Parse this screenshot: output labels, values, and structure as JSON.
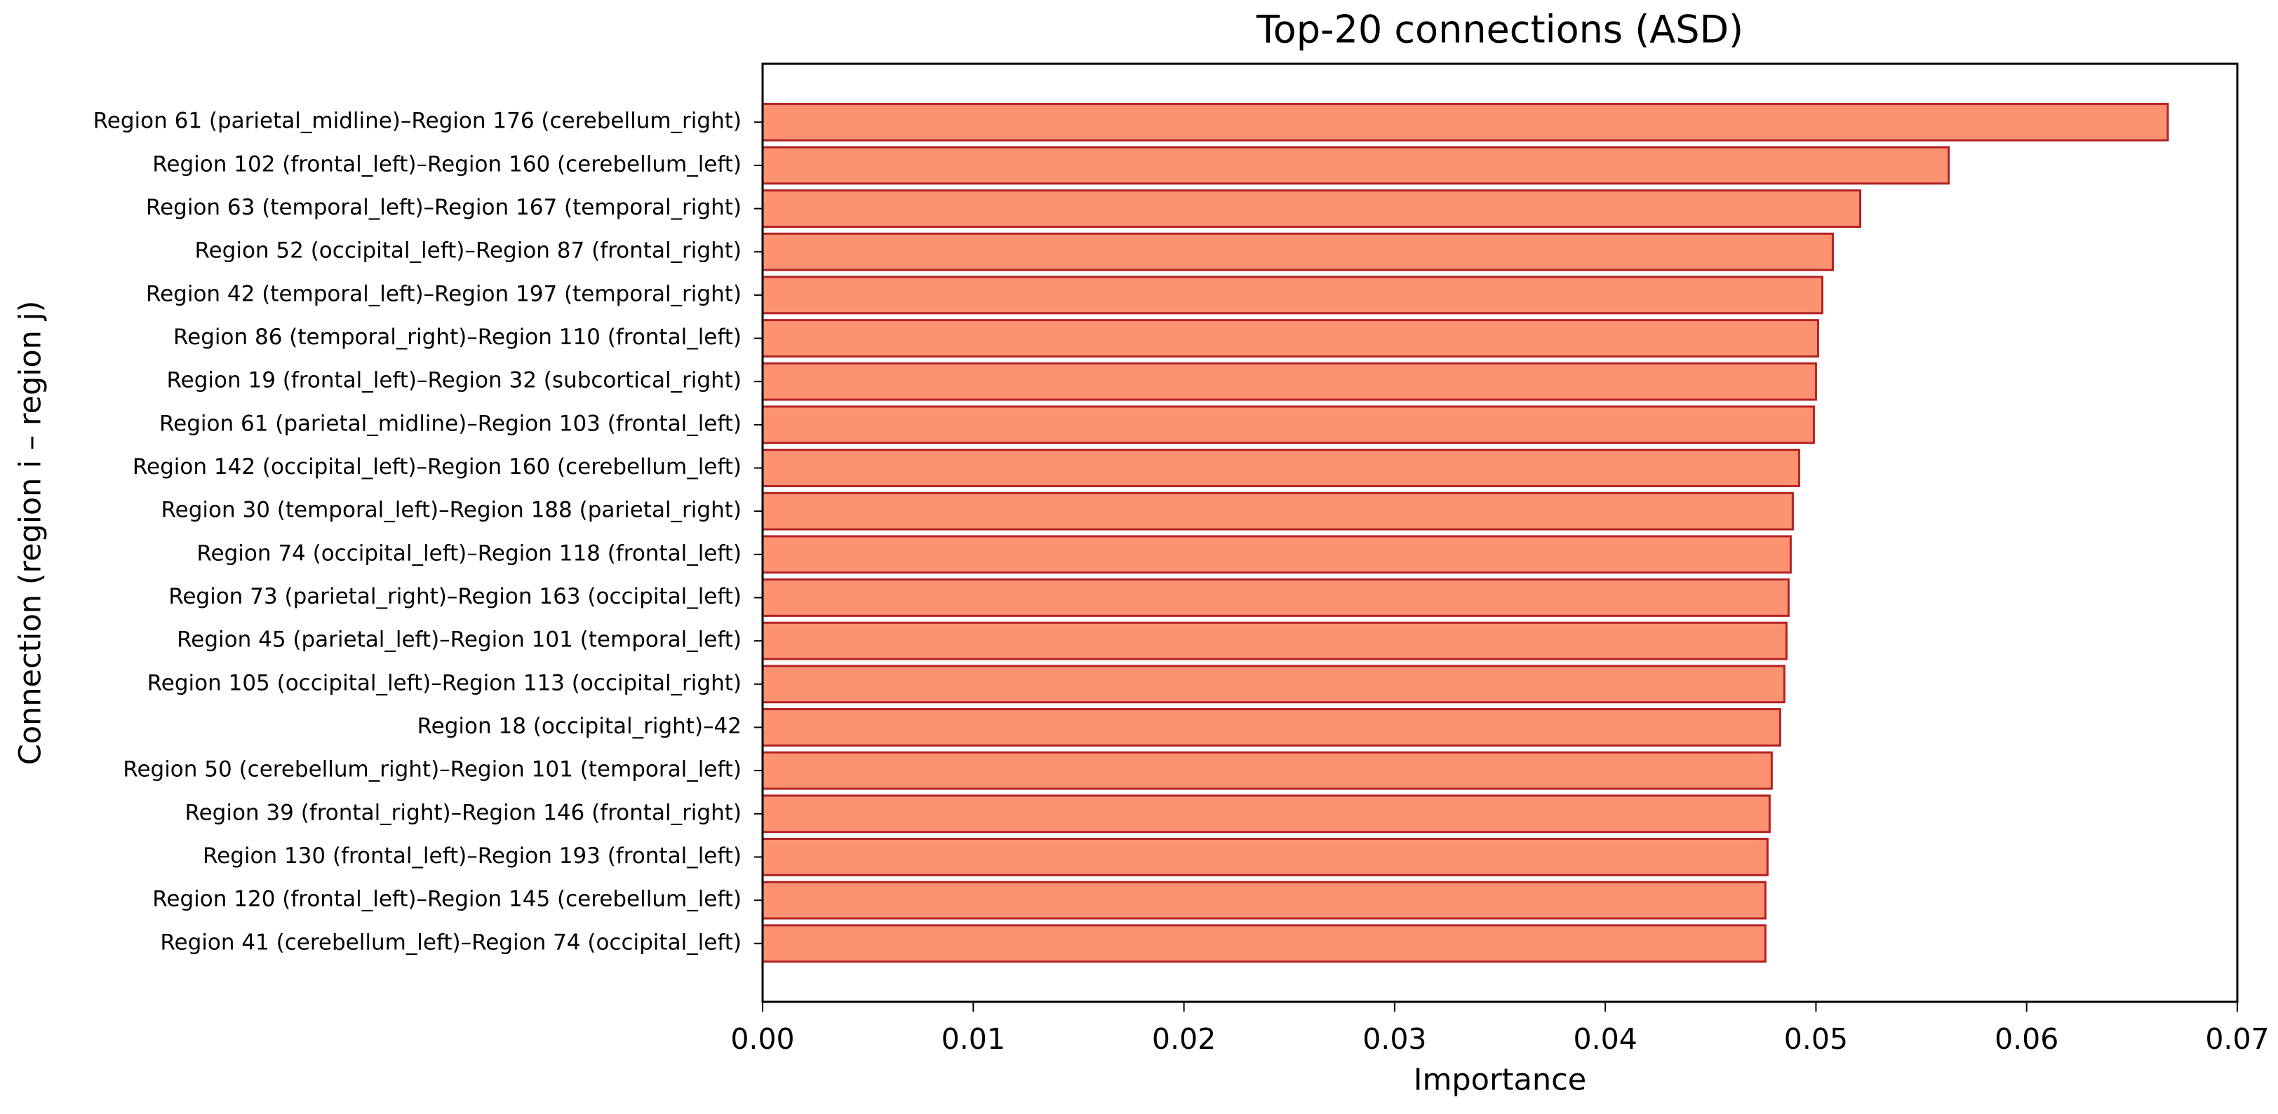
{
  "chart_data": {
    "type": "barh",
    "title": "Top-20 connections (ASD)",
    "xlabel": "Importance",
    "ylabel": "Connection (region i – region j)",
    "categories": [
      "Region 61 (parietal_midline)–Region 176 (cerebellum_right)",
      "Region 102 (frontal_left)–Region 160 (cerebellum_left)",
      "Region 63 (temporal_left)–Region 167 (temporal_right)",
      "Region 52 (occipital_left)–Region 87 (frontal_right)",
      "Region 42 (temporal_left)–Region 197 (temporal_right)",
      "Region 86 (temporal_right)–Region 110 (frontal_left)",
      "Region 19 (frontal_left)–Region 32 (subcortical_right)",
      "Region 61 (parietal_midline)–Region 103 (frontal_left)",
      "Region 142 (occipital_left)–Region 160 (cerebellum_left)",
      "Region 30 (temporal_left)–Region 188 (parietal_right)",
      "Region 74 (occipital_left)–Region 118 (frontal_left)",
      "Region 73 (parietal_right)–Region 163 (occipital_left)",
      "Region 45 (parietal_left)–Region 101 (temporal_left)",
      "Region 105 (occipital_left)–Region 113 (occipital_right)",
      "Region 18 (occipital_right)–42",
      "Region 50 (cerebellum_right)–Region 101 (temporal_left)",
      "Region 39 (frontal_right)–Region 146 (frontal_right)",
      "Region 130 (frontal_left)–Region 193 (frontal_left)",
      "Region 120 (frontal_left)–Region 145 (cerebellum_left)",
      "Region 41 (cerebellum_left)–Region 74 (occipital_left)"
    ],
    "values": [
      0.0667,
      0.0563,
      0.0521,
      0.0508,
      0.0503,
      0.0501,
      0.05,
      0.0499,
      0.0492,
      0.0489,
      0.0488,
      0.0487,
      0.0486,
      0.0485,
      0.0483,
      0.0479,
      0.0478,
      0.0477,
      0.0476,
      0.0476
    ],
    "color": "#fc9272",
    "edgecolor": "#b22222",
    "xlim": [
      0,
      0.07
    ],
    "xticks": [
      {
        "value": 0,
        "label": "0.00"
      },
      {
        "value": 0.01,
        "label": "0.01"
      },
      {
        "value": 0.02,
        "label": "0.02"
      },
      {
        "value": 0.03,
        "label": "0.03"
      },
      {
        "value": 0.04,
        "label": "0.04"
      },
      {
        "value": 0.05,
        "label": "0.05"
      },
      {
        "value": 0.06,
        "label": "0.06"
      },
      {
        "value": 0.07,
        "label": "0.07"
      }
    ],
    "grid": false
  }
}
